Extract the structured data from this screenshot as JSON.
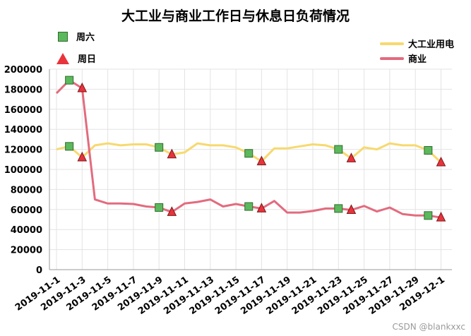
{
  "chart_data": {
    "type": "line",
    "title": "大工业与商业工作日与休息日负荷情况",
    "xlabel": "",
    "ylabel": "",
    "ylim": [
      0,
      200000
    ],
    "yticks": [
      "0",
      "20000",
      "40000",
      "60000",
      "80000",
      "100000",
      "120000",
      "140000",
      "160000",
      "180000",
      "200000"
    ],
    "x": [
      "2019-11-1",
      "2019-11-2",
      "2019-11-3",
      "2019-11-4",
      "2019-11-5",
      "2019-11-6",
      "2019-11-7",
      "2019-11-8",
      "2019-11-9",
      "2019-11-10",
      "2019-11-11",
      "2019-11-12",
      "2019-11-13",
      "2019-11-14",
      "2019-11-15",
      "2019-11-16",
      "2019-11-17",
      "2019-11-18",
      "2019-11-19",
      "2019-11-20",
      "2019-11-21",
      "2019-11-22",
      "2019-11-23",
      "2019-11-24",
      "2019-11-25",
      "2019-11-26",
      "2019-11-27",
      "2019-11-28",
      "2019-11-29",
      "2019-11-30",
      "2019-12-1"
    ],
    "xtick_labels": [
      "2019-11-1",
      "2019-11-3",
      "2019-11-5",
      "2019-11-7",
      "2019-11-9",
      "2019-11-11",
      "2019-11-13",
      "2019-11-15",
      "2019-11-17",
      "2019-11-19",
      "2019-11-21",
      "2019-11-23",
      "2019-11-25",
      "2019-11-27",
      "2019-11-29",
      "2019-12-1"
    ],
    "series": [
      {
        "name": "大工业用电",
        "color": "#f7d96e",
        "values": [
          120000,
          123000,
          112000,
          124000,
          126000,
          124000,
          125000,
          125000,
          122000,
          115000,
          117000,
          126000,
          124000,
          124000,
          122000,
          116000,
          108000,
          121000,
          121000,
          123000,
          125000,
          124000,
          120000,
          111000,
          122000,
          120000,
          126000,
          124000,
          124000,
          119000,
          107000
        ]
      },
      {
        "name": "商业",
        "color": "#e36b7e",
        "values": [
          176000,
          189000,
          181000,
          70000,
          66000,
          66000,
          65500,
          63000,
          62000,
          57500,
          66000,
          67500,
          70000,
          63000,
          65500,
          63000,
          61000,
          68500,
          57000,
          57000,
          58500,
          61000,
          61000,
          59500,
          63500,
          58000,
          62000,
          55500,
          54000,
          54000,
          52000
        ]
      }
    ],
    "markers": [
      {
        "name": "周六",
        "shape": "square",
        "color": "#5cb85c",
        "indices": [
          1,
          8,
          15,
          22,
          29
        ]
      },
      {
        "name": "周日",
        "shape": "triangle",
        "color": "#e8333d",
        "indices": [
          2,
          9,
          16,
          23,
          30
        ]
      }
    ],
    "grid": true,
    "legend_position": "top",
    "watermark": "CSDN @blankxxc"
  }
}
